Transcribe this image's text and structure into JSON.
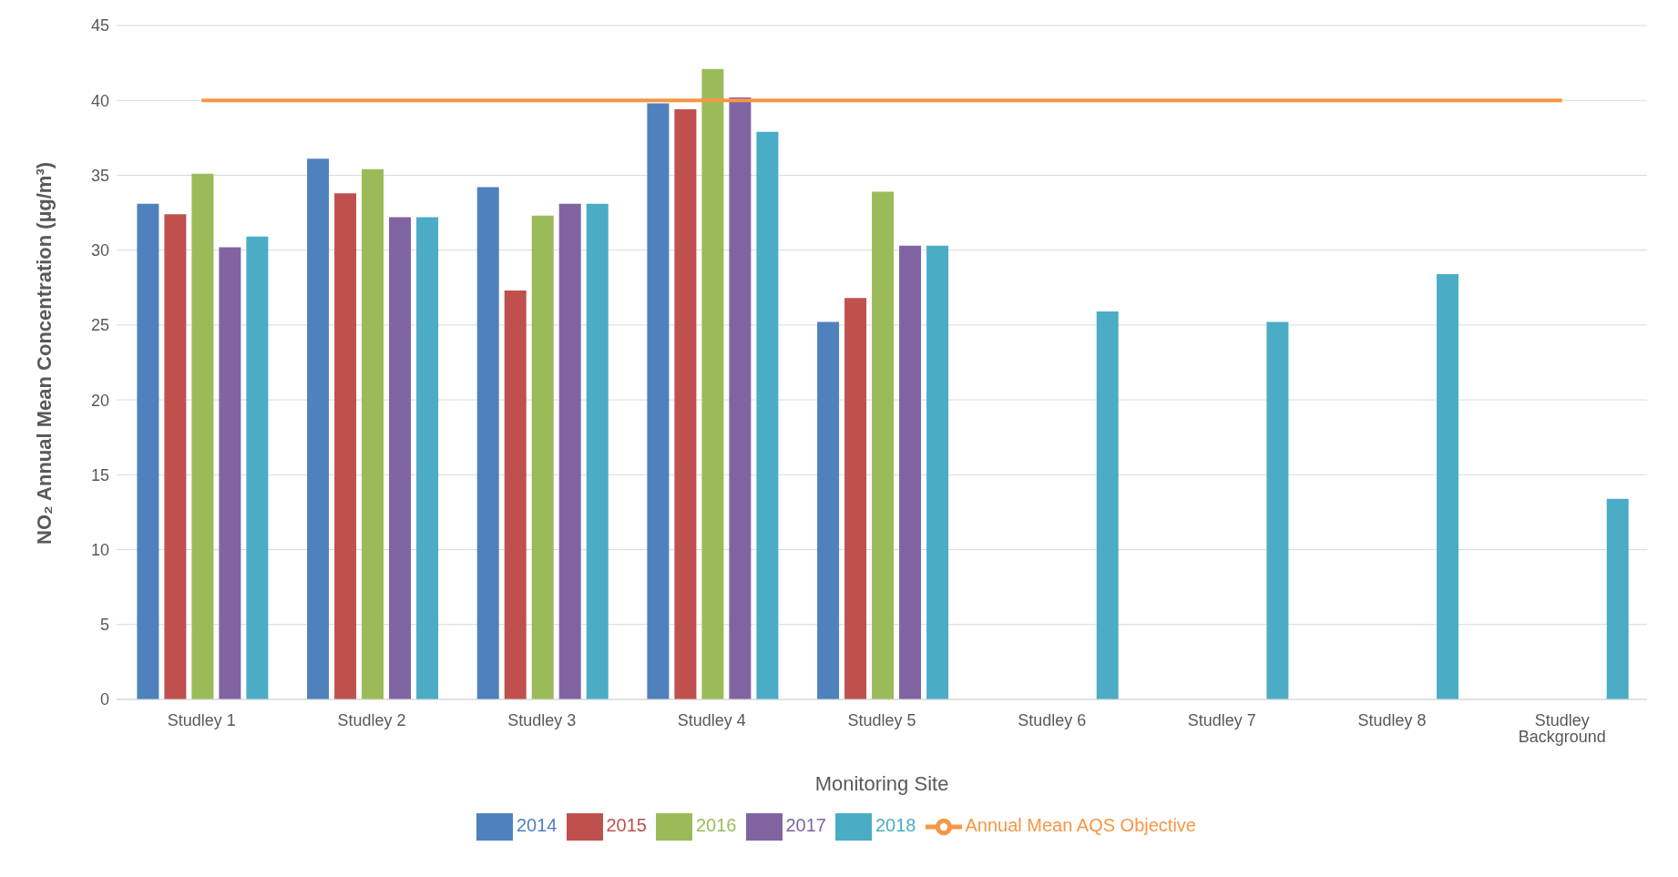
{
  "chart_data": {
    "type": "bar",
    "xlabel": "Monitoring Site",
    "ylabel": "NO₂ Annual Mean Concentration (µg/m³)",
    "categories": [
      "Studley 1",
      "Studley 2",
      "Studley 3",
      "Studley 4",
      "Studley 5",
      "Studley 6",
      "Studley 7",
      "Studley 8",
      "Studley Background"
    ],
    "series": [
      {
        "name": "2014",
        "color": "#4f81bd",
        "values": [
          33.1,
          36.1,
          34.2,
          39.8,
          25.2,
          null,
          null,
          null,
          null
        ]
      },
      {
        "name": "2015",
        "color": "#c0504d",
        "values": [
          32.4,
          33.8,
          27.3,
          39.4,
          26.8,
          null,
          null,
          null,
          null
        ]
      },
      {
        "name": "2016",
        "color": "#9bbb59",
        "values": [
          35.1,
          35.4,
          32.3,
          42.1,
          33.9,
          null,
          null,
          null,
          null
        ]
      },
      {
        "name": "2017",
        "color": "#8064a2",
        "values": [
          30.2,
          32.2,
          33.1,
          40.2,
          30.3,
          null,
          null,
          null,
          null
        ]
      },
      {
        "name": "2018",
        "color": "#4bacc6",
        "values": [
          30.9,
          32.2,
          33.1,
          37.9,
          30.3,
          25.9,
          25.2,
          28.4,
          13.4
        ]
      },
      {
        "name": "Annual Mean AQS Objective",
        "type": "line",
        "color": "#f79646",
        "values": [
          40,
          40,
          40,
          40,
          40,
          40,
          40,
          40,
          40
        ]
      }
    ],
    "ylim": [
      0,
      45
    ],
    "yticks": [
      0,
      5,
      10,
      15,
      20,
      25,
      30,
      35,
      40,
      45
    ],
    "grid": "y",
    "legend": "bottom"
  }
}
